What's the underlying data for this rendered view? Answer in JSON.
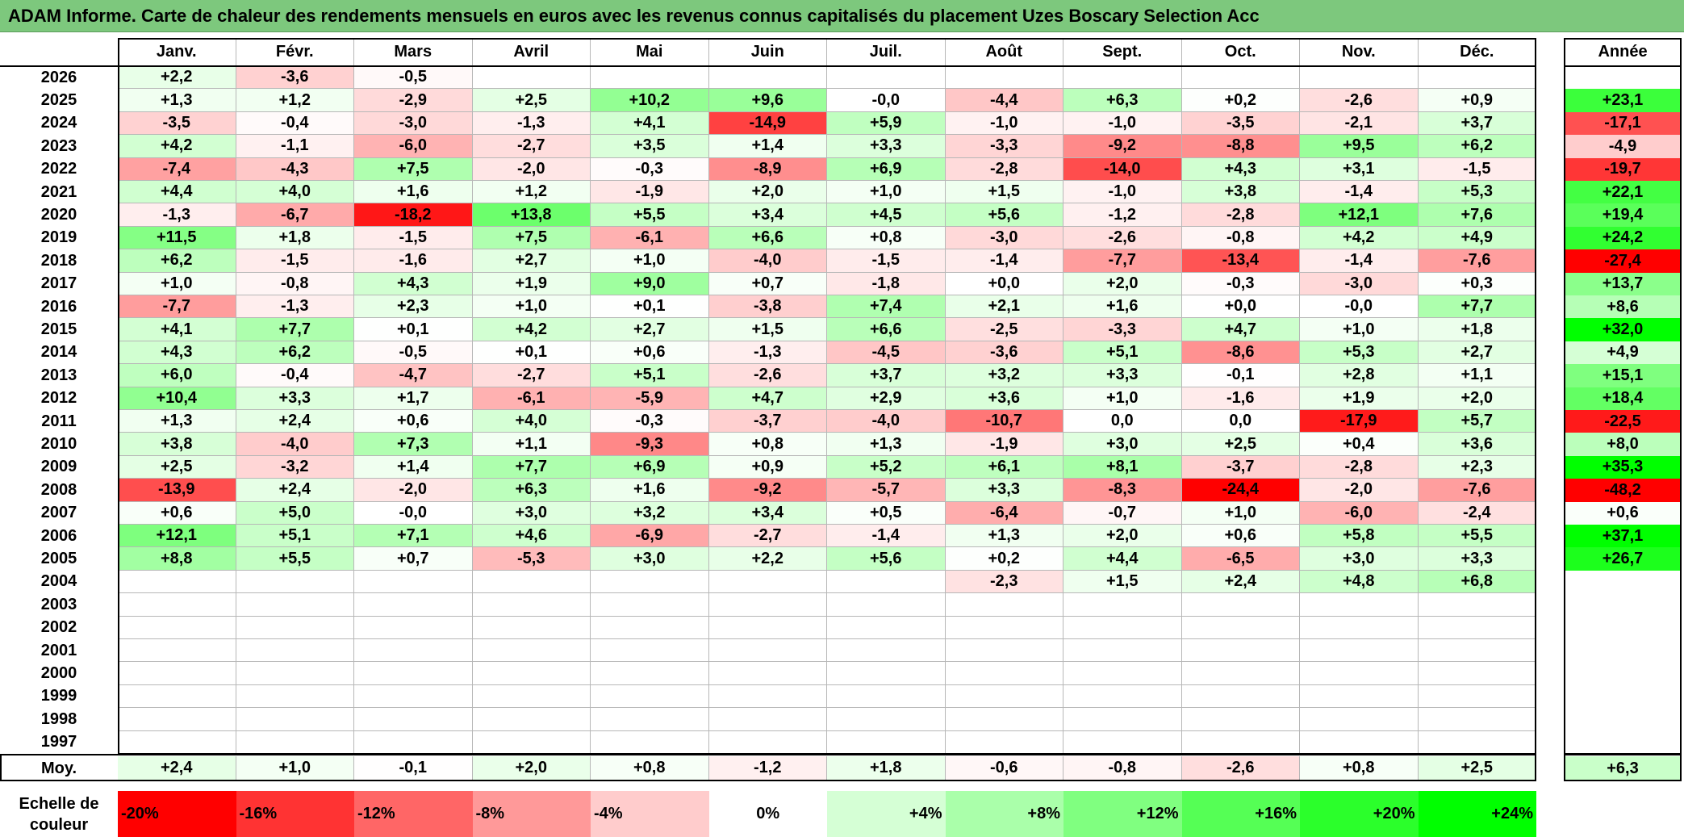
{
  "title": "ADAM Informe. Carte de chaleur des rendements mensuels en euros avec les revenus connus capitalisés du placement Uzes Boscary Selection Acc",
  "chart_data": {
    "type": "heatmap",
    "title": "ADAM Informe. Carte de chaleur des rendements mensuels en euros avec les revenus connus capitalisés du placement Uzes Boscary Selection Acc",
    "columns": [
      "Janv.",
      "Févr.",
      "Mars",
      "Avril",
      "Mai",
      "Juin",
      "Juil.",
      "Août",
      "Sept.",
      "Oct.",
      "Nov.",
      "Déc."
    ],
    "year_column_label": "Année",
    "rows": [
      {
        "year": "2026",
        "months": [
          "+2,2",
          "-3,6",
          "-0,5",
          "",
          "",
          "",
          "",
          "",
          "",
          "",
          "",
          ""
        ],
        "annual": ""
      },
      {
        "year": "2025",
        "months": [
          "+1,3",
          "+1,2",
          "-2,9",
          "+2,5",
          "+10,2",
          "+9,6",
          "-0,0",
          "-4,4",
          "+6,3",
          "+0,2",
          "-2,6",
          "+0,9"
        ],
        "annual": "+23,1"
      },
      {
        "year": "2024",
        "months": [
          "-3,5",
          "-0,4",
          "-3,0",
          "-1,3",
          "+4,1",
          "-14,9",
          "+5,9",
          "-1,0",
          "-1,0",
          "-3,5",
          "-2,1",
          "+3,7"
        ],
        "annual": "-17,1"
      },
      {
        "year": "2023",
        "months": [
          "+4,2",
          "-1,1",
          "-6,0",
          "-2,7",
          "+3,5",
          "+1,4",
          "+3,3",
          "-3,3",
          "-9,2",
          "-8,8",
          "+9,5",
          "+6,2"
        ],
        "annual": "-4,9"
      },
      {
        "year": "2022",
        "months": [
          "-7,4",
          "-4,3",
          "+7,5",
          "-2,0",
          "-0,3",
          "-8,9",
          "+6,9",
          "-2,8",
          "-14,0",
          "+4,3",
          "+3,1",
          "-1,5"
        ],
        "annual": "-19,7"
      },
      {
        "year": "2021",
        "months": [
          "+4,4",
          "+4,0",
          "+1,6",
          "+1,2",
          "-1,9",
          "+2,0",
          "+1,0",
          "+1,5",
          "-1,0",
          "+3,8",
          "-1,4",
          "+5,3"
        ],
        "annual": "+22,1"
      },
      {
        "year": "2020",
        "months": [
          "-1,3",
          "-6,7",
          "-18,2",
          "+13,8",
          "+5,5",
          "+3,4",
          "+4,5",
          "+5,6",
          "-1,2",
          "-2,8",
          "+12,1",
          "+7,6"
        ],
        "annual": "+19,4"
      },
      {
        "year": "2019",
        "months": [
          "+11,5",
          "+1,8",
          "-1,5",
          "+7,5",
          "-6,1",
          "+6,6",
          "+0,8",
          "-3,0",
          "-2,6",
          "-0,8",
          "+4,2",
          "+4,9"
        ],
        "annual": "+24,2"
      },
      {
        "year": "2018",
        "months": [
          "+6,2",
          "-1,5",
          "-1,6",
          "+2,7",
          "+1,0",
          "-4,0",
          "-1,5",
          "-1,4",
          "-7,7",
          "-13,4",
          "-1,4",
          "-7,6"
        ],
        "annual": "-27,4"
      },
      {
        "year": "2017",
        "months": [
          "+1,0",
          "-0,8",
          "+4,3",
          "+1,9",
          "+9,0",
          "+0,7",
          "-1,8",
          "+0,0",
          "+2,0",
          "-0,3",
          "-3,0",
          "+0,3"
        ],
        "annual": "+13,7"
      },
      {
        "year": "2016",
        "months": [
          "-7,7",
          "-1,3",
          "+2,3",
          "+1,0",
          "+0,1",
          "-3,8",
          "+7,4",
          "+2,1",
          "+1,6",
          "+0,0",
          "-0,0",
          "+7,7"
        ],
        "annual": "+8,6"
      },
      {
        "year": "2015",
        "months": [
          "+4,1",
          "+7,7",
          "+0,1",
          "+4,2",
          "+2,7",
          "+1,5",
          "+6,6",
          "-2,5",
          "-3,3",
          "+4,7",
          "+1,0",
          "+1,8"
        ],
        "annual": "+32,0"
      },
      {
        "year": "2014",
        "months": [
          "+4,3",
          "+6,2",
          "-0,5",
          "+0,1",
          "+0,6",
          "-1,3",
          "-4,5",
          "-3,6",
          "+5,1",
          "-8,6",
          "+5,3",
          "+2,7"
        ],
        "annual": "+4,9"
      },
      {
        "year": "2013",
        "months": [
          "+6,0",
          "-0,4",
          "-4,7",
          "-2,7",
          "+5,1",
          "-2,6",
          "+3,7",
          "+3,2",
          "+3,3",
          "-0,1",
          "+2,8",
          "+1,1"
        ],
        "annual": "+15,1"
      },
      {
        "year": "2012",
        "months": [
          "+10,4",
          "+3,3",
          "+1,7",
          "-6,1",
          "-5,9",
          "+4,7",
          "+2,9",
          "+3,6",
          "+1,0",
          "-1,6",
          "+1,9",
          "+2,0"
        ],
        "annual": "+18,4"
      },
      {
        "year": "2011",
        "months": [
          "+1,3",
          "+2,4",
          "+0,6",
          "+4,0",
          "-0,3",
          "-3,7",
          "-4,0",
          "-10,7",
          "0,0",
          "0,0",
          "-17,9",
          "+5,7"
        ],
        "annual": "-22,5"
      },
      {
        "year": "2010",
        "months": [
          "+3,8",
          "-4,0",
          "+7,3",
          "+1,1",
          "-9,3",
          "+0,8",
          "+1,3",
          "-1,9",
          "+3,0",
          "+2,5",
          "+0,4",
          "+3,6"
        ],
        "annual": "+8,0"
      },
      {
        "year": "2009",
        "months": [
          "+2,5",
          "-3,2",
          "+1,4",
          "+7,7",
          "+6,9",
          "+0,9",
          "+5,2",
          "+6,1",
          "+8,1",
          "-3,7",
          "-2,8",
          "+2,3"
        ],
        "annual": "+35,3"
      },
      {
        "year": "2008",
        "months": [
          "-13,9",
          "+2,4",
          "-2,0",
          "+6,3",
          "+1,6",
          "-9,2",
          "-5,7",
          "+3,3",
          "-8,3",
          "-24,4",
          "-2,0",
          "-7,6"
        ],
        "annual": "-48,2"
      },
      {
        "year": "2007",
        "months": [
          "+0,6",
          "+5,0",
          "-0,0",
          "+3,0",
          "+3,2",
          "+3,4",
          "+0,5",
          "-6,4",
          "-0,7",
          "+1,0",
          "-6,0",
          "-2,4"
        ],
        "annual": "+0,6"
      },
      {
        "year": "2006",
        "months": [
          "+12,1",
          "+5,1",
          "+7,1",
          "+4,6",
          "-6,9",
          "-2,7",
          "-1,4",
          "+1,3",
          "+2,0",
          "+0,6",
          "+5,8",
          "+5,5"
        ],
        "annual": "+37,1"
      },
      {
        "year": "2005",
        "months": [
          "+8,8",
          "+5,5",
          "+0,7",
          "-5,3",
          "+3,0",
          "+2,2",
          "+5,6",
          "+0,2",
          "+4,4",
          "-6,5",
          "+3,0",
          "+3,3"
        ],
        "annual": "+26,7"
      },
      {
        "year": "2004",
        "months": [
          "",
          "",
          "",
          "",
          "",
          "",
          "",
          "-2,3",
          "+1,5",
          "+2,4",
          "+4,8",
          "+6,8"
        ],
        "annual": ""
      },
      {
        "year": "2003",
        "months": [
          "",
          "",
          "",
          "",
          "",
          "",
          "",
          "",
          "",
          "",
          "",
          ""
        ],
        "annual": ""
      },
      {
        "year": "2002",
        "months": [
          "",
          "",
          "",
          "",
          "",
          "",
          "",
          "",
          "",
          "",
          "",
          ""
        ],
        "annual": ""
      },
      {
        "year": "2001",
        "months": [
          "",
          "",
          "",
          "",
          "",
          "",
          "",
          "",
          "",
          "",
          "",
          ""
        ],
        "annual": ""
      },
      {
        "year": "2000",
        "months": [
          "",
          "",
          "",
          "",
          "",
          "",
          "",
          "",
          "",
          "",
          "",
          ""
        ],
        "annual": ""
      },
      {
        "year": "1999",
        "months": [
          "",
          "",
          "",
          "",
          "",
          "",
          "",
          "",
          "",
          "",
          "",
          ""
        ],
        "annual": ""
      },
      {
        "year": "1998",
        "months": [
          "",
          "",
          "",
          "",
          "",
          "",
          "",
          "",
          "",
          "",
          "",
          ""
        ],
        "annual": ""
      },
      {
        "year": "1997",
        "months": [
          "",
          "",
          "",
          "",
          "",
          "",
          "",
          "",
          "",
          "",
          "",
          ""
        ],
        "annual": ""
      }
    ],
    "average": {
      "label": "Moy.",
      "months": [
        "+2,4",
        "+1,0",
        "-0,1",
        "+2,0",
        "+0,8",
        "-1,2",
        "+1,8",
        "-0,6",
        "-0,8",
        "-2,6",
        "+0,8",
        "+2,5"
      ],
      "annual": "+6,3"
    },
    "color_scale": {
      "label_line1": "Echelle de",
      "label_line2": "couleur",
      "stops": [
        "-20%",
        "-16%",
        "-12%",
        "-8%",
        "-4%",
        "0%",
        "+4%",
        "+8%",
        "+12%",
        "+16%",
        "+20%",
        "+24%"
      ],
      "negative_color": "#ff0000",
      "neutral_color": "#ffffff",
      "positive_color": "#00ff00"
    }
  }
}
